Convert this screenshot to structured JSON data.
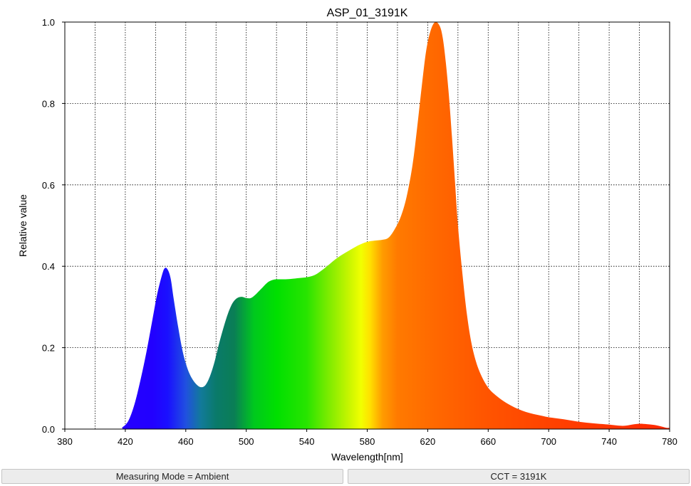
{
  "chart_data": {
    "type": "area",
    "title": "ASP_01_3191K",
    "xlabel": "Wavelength[nm]",
    "ylabel": "Relative value",
    "xlim": [
      380,
      780
    ],
    "ylim": [
      0,
      1.0
    ],
    "xticks": [
      380,
      420,
      460,
      500,
      540,
      580,
      620,
      660,
      700,
      740,
      780
    ],
    "xtick_labels": [
      "380",
      "420",
      "460",
      "500",
      "540",
      "580",
      "620",
      "660",
      "700",
      "740",
      "780"
    ],
    "yticks": [
      0,
      0.2,
      0.4,
      0.6,
      0.8,
      1.0
    ],
    "ytick_labels": [
      "0.0",
      "0.2",
      "0.4",
      "0.6",
      "0.8",
      "1.0"
    ],
    "grid": true,
    "fill": "spectral-gradient",
    "x": [
      380,
      415,
      418,
      422,
      426,
      430,
      434,
      438,
      441,
      444,
      446,
      448,
      450,
      452,
      455,
      458,
      461,
      464,
      467,
      470,
      473,
      476,
      479,
      482,
      485,
      488,
      491,
      494,
      497,
      500,
      503,
      506,
      510,
      514,
      518,
      522,
      526,
      530,
      535,
      540,
      545,
      550,
      555,
      560,
      565,
      570,
      575,
      580,
      585,
      590,
      594,
      598,
      602,
      606,
      610,
      613,
      616,
      619,
      622,
      625,
      628,
      630,
      632,
      634,
      636,
      638,
      640,
      643,
      646,
      649,
      652,
      655,
      658,
      661,
      665,
      670,
      675,
      680,
      685,
      690,
      695,
      700,
      710,
      720,
      730,
      740,
      745,
      750,
      755,
      760,
      765,
      770,
      775,
      778,
      780
    ],
    "values": [
      0.0,
      0.0,
      0.004,
      0.02,
      0.06,
      0.12,
      0.19,
      0.27,
      0.33,
      0.375,
      0.395,
      0.392,
      0.37,
      0.32,
      0.25,
      0.19,
      0.15,
      0.125,
      0.11,
      0.103,
      0.108,
      0.13,
      0.165,
      0.21,
      0.25,
      0.285,
      0.31,
      0.322,
      0.325,
      0.322,
      0.322,
      0.33,
      0.345,
      0.36,
      0.367,
      0.368,
      0.368,
      0.369,
      0.371,
      0.373,
      0.378,
      0.39,
      0.405,
      0.42,
      0.432,
      0.443,
      0.453,
      0.46,
      0.463,
      0.465,
      0.47,
      0.49,
      0.52,
      0.57,
      0.65,
      0.74,
      0.84,
      0.93,
      0.98,
      1.0,
      0.99,
      0.96,
      0.9,
      0.82,
      0.72,
      0.61,
      0.5,
      0.38,
      0.28,
      0.21,
      0.165,
      0.135,
      0.113,
      0.097,
      0.083,
      0.069,
      0.058,
      0.049,
      0.042,
      0.037,
      0.033,
      0.029,
      0.024,
      0.018,
      0.014,
      0.011,
      0.009,
      0.008,
      0.011,
      0.013,
      0.012,
      0.01,
      0.006,
      0.003,
      0.003
    ]
  },
  "status_bar": {
    "measuring_mode": "Measuring Mode = Ambient",
    "cct": "CCT = 3191K"
  }
}
